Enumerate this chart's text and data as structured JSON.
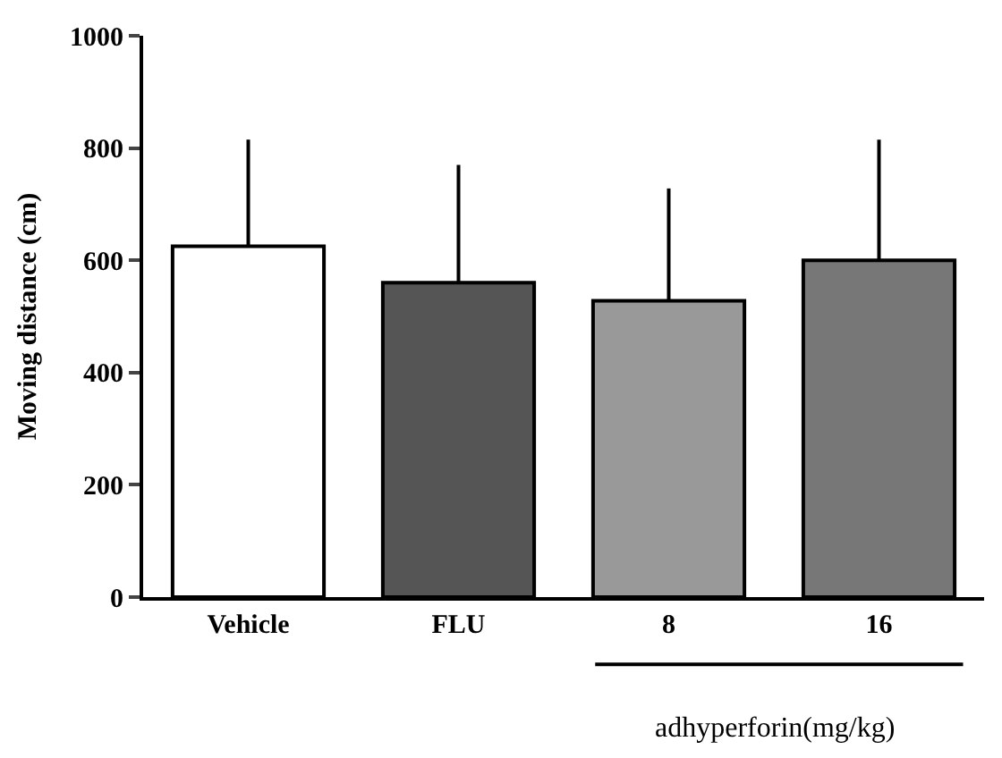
{
  "chart_data": {
    "type": "bar",
    "ylabel": "Moving distance (cm)",
    "categories": [
      "Vehicle",
      "FLU",
      "8",
      "16"
    ],
    "values": [
      625,
      560,
      528,
      600
    ],
    "colors": [
      "#ffffff",
      "#555555",
      "#999999",
      "#777777"
    ],
    "errors": [
      [
        625,
        815
      ],
      [
        560,
        770
      ],
      [
        528,
        728
      ],
      [
        600,
        815
      ]
    ],
    "ylim": [
      0,
      1000
    ],
    "yticks": [
      0,
      200,
      400,
      600,
      800,
      1000
    ],
    "legend": false,
    "annotations": [
      "adhyperforin(mg/kg)"
    ]
  }
}
